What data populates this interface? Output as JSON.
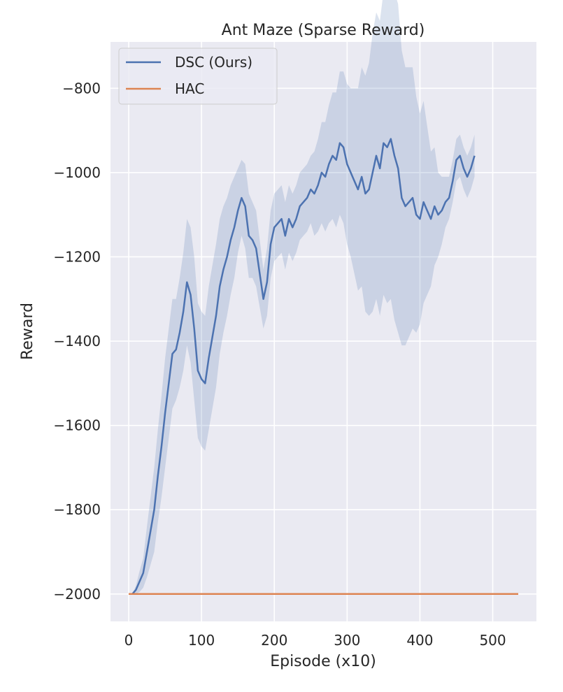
{
  "chart_data": {
    "type": "line",
    "title": "Ant Maze (Sparse Reward)",
    "xlabel": "Episode (x10)",
    "ylabel": "Reward",
    "xlim": [
      -25,
      560
    ],
    "ylim": [
      -2065,
      -690
    ],
    "xticks": [
      0,
      100,
      200,
      300,
      400,
      500
    ],
    "yticks": [
      -800,
      -1000,
      -1200,
      -1400,
      -1600,
      -1800,
      -2000
    ],
    "xtick_labels": [
      "0",
      "100",
      "200",
      "300",
      "400",
      "500"
    ],
    "ytick_labels": [
      "−800",
      "−1000",
      "−1200",
      "−1400",
      "−1600",
      "−1800",
      "−2000"
    ],
    "grid": true,
    "legend_position": "top-left",
    "series": [
      {
        "name": "DSC (Ours)",
        "color": "#4c72b0",
        "band_opacity": 0.2,
        "x": [
          0,
          5,
          10,
          15,
          20,
          25,
          30,
          35,
          40,
          45,
          50,
          55,
          60,
          65,
          70,
          75,
          80,
          85,
          90,
          95,
          100,
          105,
          110,
          115,
          120,
          125,
          130,
          135,
          140,
          145,
          150,
          155,
          160,
          165,
          170,
          175,
          180,
          185,
          190,
          195,
          200,
          205,
          210,
          215,
          220,
          225,
          230,
          235,
          240,
          245,
          250,
          255,
          260,
          265,
          270,
          275,
          280,
          285,
          290,
          295,
          300,
          305,
          310,
          315,
          320,
          325,
          330,
          335,
          340,
          345,
          350,
          355,
          360,
          365,
          370,
          375,
          380,
          385,
          390,
          395,
          400,
          405,
          410,
          415,
          420,
          425,
          430,
          435,
          440,
          445,
          450,
          455,
          460,
          465,
          470,
          475
        ],
        "values": [
          -2000,
          -2000,
          -1990,
          -1970,
          -1950,
          -1900,
          -1850,
          -1800,
          -1720,
          -1650,
          -1570,
          -1500,
          -1430,
          -1420,
          -1380,
          -1330,
          -1260,
          -1290,
          -1370,
          -1470,
          -1490,
          -1500,
          -1440,
          -1390,
          -1340,
          -1270,
          -1230,
          -1200,
          -1160,
          -1130,
          -1090,
          -1060,
          -1080,
          -1150,
          -1160,
          -1180,
          -1240,
          -1300,
          -1260,
          -1170,
          -1130,
          -1120,
          -1110,
          -1150,
          -1110,
          -1130,
          -1110,
          -1080,
          -1070,
          -1060,
          -1040,
          -1050,
          -1030,
          -1000,
          -1010,
          -980,
          -960,
          -970,
          -930,
          -940,
          -980,
          -1000,
          -1020,
          -1040,
          -1010,
          -1050,
          -1040,
          -1000,
          -960,
          -990,
          -930,
          -940,
          -920,
          -960,
          -990,
          -1060,
          -1080,
          -1070,
          -1060,
          -1100,
          -1110,
          -1070,
          -1090,
          -1110,
          -1080,
          -1100,
          -1090,
          -1070,
          -1060,
          -1020,
          -970,
          -960,
          -990,
          -1010,
          -990,
          -960
        ],
        "lower": [
          -2000,
          -2000,
          -2000,
          -1995,
          -1985,
          -1960,
          -1930,
          -1900,
          -1830,
          -1770,
          -1700,
          -1630,
          -1560,
          -1540,
          -1510,
          -1470,
          -1410,
          -1450,
          -1540,
          -1630,
          -1650,
          -1660,
          -1610,
          -1560,
          -1510,
          -1430,
          -1380,
          -1340,
          -1290,
          -1250,
          -1190,
          -1150,
          -1180,
          -1250,
          -1250,
          -1270,
          -1320,
          -1370,
          -1340,
          -1250,
          -1210,
          -1200,
          -1190,
          -1230,
          -1190,
          -1210,
          -1190,
          -1160,
          -1150,
          -1140,
          -1120,
          -1150,
          -1140,
          -1120,
          -1140,
          -1120,
          -1110,
          -1130,
          -1100,
          -1120,
          -1170,
          -1200,
          -1240,
          -1280,
          -1270,
          -1330,
          -1340,
          -1330,
          -1300,
          -1340,
          -1290,
          -1310,
          -1300,
          -1350,
          -1380,
          -1410,
          -1410,
          -1390,
          -1370,
          -1380,
          -1360,
          -1310,
          -1290,
          -1270,
          -1220,
          -1200,
          -1170,
          -1130,
          -1110,
          -1070,
          -1020,
          -1010,
          -1040,
          -1060,
          -1040,
          -1010
        ],
        "upper": [
          -2000,
          -2000,
          -1980,
          -1945,
          -1915,
          -1840,
          -1770,
          -1700,
          -1610,
          -1530,
          -1440,
          -1370,
          -1300,
          -1300,
          -1250,
          -1190,
          -1110,
          -1130,
          -1200,
          -1310,
          -1330,
          -1340,
          -1270,
          -1220,
          -1170,
          -1110,
          -1080,
          -1060,
          -1030,
          -1010,
          -990,
          -970,
          -980,
          -1050,
          -1070,
          -1090,
          -1160,
          -1230,
          -1180,
          -1090,
          -1050,
          -1040,
          -1030,
          -1070,
          -1030,
          -1050,
          -1030,
          -1000,
          -990,
          -980,
          -960,
          -950,
          -920,
          -880,
          -880,
          -840,
          -810,
          -810,
          -760,
          -760,
          -790,
          -800,
          -800,
          -800,
          -750,
          -770,
          -740,
          -670,
          -620,
          -640,
          -570,
          -570,
          -540,
          -570,
          -600,
          -710,
          -750,
          -750,
          -750,
          -820,
          -860,
          -830,
          -890,
          -950,
          -940,
          -1000,
          -1010,
          -1010,
          -1010,
          -970,
          -920,
          -910,
          -940,
          -960,
          -940,
          -910
        ]
      },
      {
        "name": "HAC",
        "color": "#dd8452",
        "x": [
          0,
          535
        ],
        "values": [
          -2000,
          -2000
        ]
      }
    ]
  }
}
